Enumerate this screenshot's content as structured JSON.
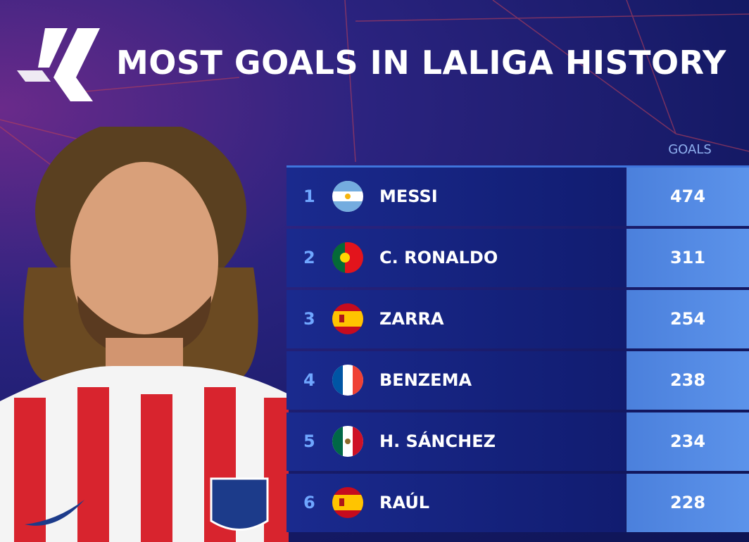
{
  "header": {
    "title": "MOST GOALS IN LALIGA HISTORY",
    "column": "GOALS"
  },
  "table": {
    "rows": [
      [
        1,
        "MESSI",
        474
      ],
      [
        2,
        "C. RONALDO",
        311
      ],
      [
        3,
        "ZARRA",
        254
      ],
      [
        4,
        "BENZEMA",
        238
      ],
      [
        5,
        "H. SÁNCHEZ",
        234
      ],
      [
        6,
        "RAÚL",
        228
      ]
    ]
  }
}
